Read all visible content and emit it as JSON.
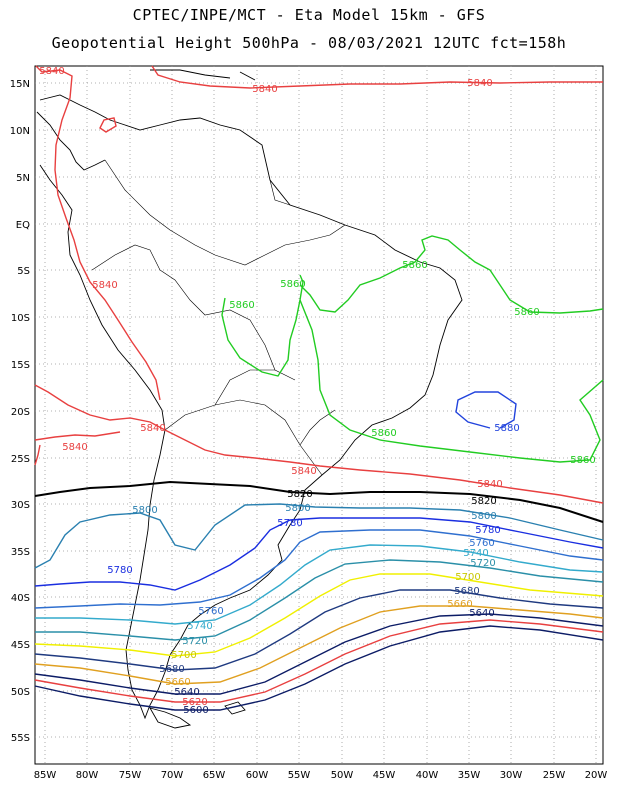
{
  "title_line1": "CPTEC/INPE/MCT -  Eta Model 15km - GFS",
  "title_line2": "Geopotential Height 500hPa - 08/03/2021 12UTC fct=158h",
  "y_ticks": [
    "15N",
    "10N",
    "5N",
    "EQ",
    "5S",
    "10S",
    "15S",
    "20S",
    "25S",
    "30S",
    "35S",
    "40S",
    "45S",
    "50S",
    "55S"
  ],
  "x_ticks": [
    "85W",
    "80W",
    "75W",
    "70W",
    "65W",
    "60W",
    "55W",
    "50W",
    "45W",
    "40W",
    "35W",
    "30W",
    "25W",
    "20W"
  ],
  "colors": {
    "c5840": "#e84040",
    "c5860": "#22cc22",
    "c5880": "#2244dd",
    "c5820": "#000000",
    "c5800": "#2a80b0",
    "c5780": "#1a2ee0",
    "c5760": "#2f6fcf",
    "c5740": "#33aacc",
    "c5720": "#2a8fa8",
    "c5700": "#f0f000",
    "c5680": "#1f3a80",
    "c5660": "#e0a020",
    "c5640": "#0c1c66",
    "c5620": "#e84040",
    "c5600": "#0c1c66",
    "coast": "#000000"
  },
  "contour_labels": {
    "l5840_nw": "5840",
    "l5840_n": "5840",
    "l5840_ne": "5840",
    "l5840_w": "5840",
    "l5840_sw": "5840",
    "l5840_sc": "5840",
    "l5840_c": "5840",
    "l5840_e": "5840",
    "l5860_a": "5860",
    "l5860_b": "5860",
    "l5860_c": "5860",
    "l5860_d": "5860",
    "l5860_e": "5860",
    "l5860_f": "5860",
    "l5880": "5880",
    "l5820_a": "5820",
    "l5820_b": "5820",
    "l5800_a": "5800",
    "l5800_b": "5800",
    "l5800_c": "5800",
    "l5780_a": "5780",
    "l5780_b": "5780",
    "l5780_c": "5780",
    "l5760_a": "5760",
    "l5760_b": "5760",
    "l5740_a": "5740",
    "l5740_b": "5740",
    "l5720_a": "5720",
    "l5720_b": "5720",
    "l5700_a": "5700",
    "l5700_b": "5700",
    "l5680_a": "5680",
    "l5680_b": "5680",
    "l5660_a": "5660",
    "l5660_b": "5660",
    "l5640_a": "5640",
    "l5640_b": "5640",
    "l5620": "5620",
    "l5600": "5600"
  }
}
